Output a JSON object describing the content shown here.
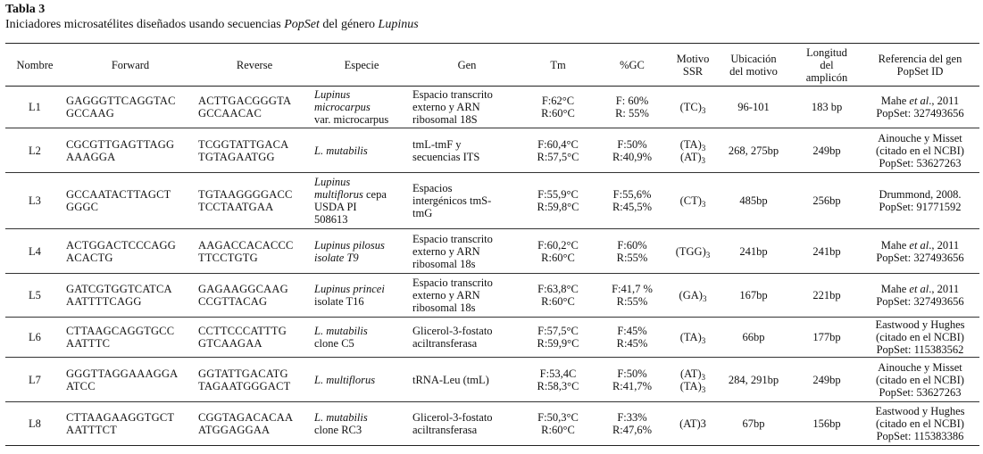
{
  "caption": {
    "label": "Tabla 3",
    "title_pre": "Iniciadores microsatélites diseñados usando secuencias ",
    "title_em1": "PopSet",
    "title_mid": " del género ",
    "title_em2": "Lupinus"
  },
  "headers": {
    "nombre": "Nombre",
    "forward": "Forward",
    "reverse": "Reverse",
    "especie": "Especie",
    "gen": "Gen",
    "tm": "Tm",
    "gc": "%GC",
    "motivo": [
      "Motivo",
      "SSR"
    ],
    "ubicacion": [
      "Ubicación",
      "del motivo"
    ],
    "longitud": [
      "Longitud",
      "del",
      "amplicón"
    ],
    "referencia": [
      "Referencia del gen",
      "PopSet ID"
    ]
  },
  "rows": [
    {
      "nombre": "L1",
      "forward": [
        "GAGGGTTCAGGTAC",
        "GCCAAG"
      ],
      "reverse": [
        "ACTTGACGGGTA",
        "GCCAACAC"
      ],
      "especie": [
        {
          "t": "Lupinus",
          "i": true
        },
        {
          "t": "microcarpus",
          "i": true
        },
        {
          "t": "var. microcarpus",
          "i": false
        }
      ],
      "gen": [
        "Espacio transcrito",
        "externo y ARN",
        "ribosomal 18S"
      ],
      "tm": [
        "F:62°C",
        "R:60°C"
      ],
      "gc": [
        "F: 60%",
        "R: 55%"
      ],
      "motivo": [
        {
          "m": "(TC)",
          "s": "3"
        }
      ],
      "ubicacion": "96-101",
      "longitud": "183 bp",
      "ref": [
        {
          "a": "Mahe ",
          "i": "et al",
          "b": "., 2011"
        },
        {
          "a": "PopSet: 327493656"
        }
      ]
    },
    {
      "nombre": "L2",
      "forward": [
        "CGCGTTGAGTTAGG",
        "AAAGGA"
      ],
      "reverse": [
        "TCGGTATTGACA",
        "TGTAGAATGG"
      ],
      "especie": [
        {
          "t": "L. mutabilis",
          "i": true
        }
      ],
      "gen": [
        "tmL-tmF y",
        "secuencias ITS"
      ],
      "tm": [
        "F:60,4°C",
        "R:57,5°C"
      ],
      "gc": [
        "F:50%",
        "R:40,9%"
      ],
      "motivo": [
        {
          "m": "(TA)",
          "s": "3"
        },
        {
          "m": "(AT)",
          "s": "3"
        }
      ],
      "ubicacion": "268, 275bp",
      "longitud": "249bp",
      "ref": [
        {
          "a": "Ainouche y Misset"
        },
        {
          "a": "(citado en el NCBI)"
        },
        {
          "a": "PopSet: 53627263"
        }
      ]
    },
    {
      "nombre": "L3",
      "forward": [
        "GCCAATACTTAGCT",
        "GGGC"
      ],
      "reverse": [
        "TGTAAGGGGACC",
        "TCCTAATGAA"
      ],
      "especie": [
        {
          "t": "Lupinus",
          "i": true
        },
        {
          "t": "multiflorus",
          "i": true,
          "suffix": " cepa"
        },
        {
          "t": "USDA PI",
          "i": false
        },
        {
          "t": "508613",
          "i": false
        }
      ],
      "gen": [
        "Espacios",
        "intergénicos tmS-",
        "tmG"
      ],
      "tm": [
        "F:55,9°C",
        "R:59,8°C"
      ],
      "gc": [
        "F:55,6%",
        "R:45,5%"
      ],
      "motivo": [
        {
          "m": "(CT)",
          "s": "3"
        }
      ],
      "ubicacion": "485bp",
      "longitud": "256bp",
      "ref": [
        {
          "a": "Drummond, 2008."
        },
        {
          "a": "PopSet: 91771592"
        }
      ]
    },
    {
      "nombre": "L4",
      "forward": [
        "ACTGGACTCCCAGG",
        "ACACTG"
      ],
      "reverse": [
        "AAGACCACACCC",
        "TTCCTGTG"
      ],
      "especie": [
        {
          "t": "Lupinus pilosus",
          "i": true
        },
        {
          "t": "isolate T9",
          "i": true
        }
      ],
      "gen": [
        "Espacio transcrito",
        "externo y ARN",
        "ribosomal 18s"
      ],
      "tm": [
        "F:60,2°C",
        "R:60°C"
      ],
      "gc": [
        "F:60%",
        "R:55%"
      ],
      "motivo": [
        {
          "m": "(TGG)",
          "s": "3"
        }
      ],
      "ubicacion": "241bp",
      "longitud": "241bp",
      "ref": [
        {
          "a": "Mahe ",
          "i": "et al",
          "b": "., 2011"
        },
        {
          "a": "PopSet: 327493656"
        }
      ]
    },
    {
      "nombre": "L5",
      "forward": [
        "GATCGTGGTCATCA",
        "AATTTTCAGG"
      ],
      "reverse": [
        "GAGAAGGCAAG",
        "CCGTTACAG"
      ],
      "especie": [
        {
          "t": "Lupinus princei",
          "i": true
        },
        {
          "t": "isolate T16",
          "i": false
        }
      ],
      "gen": [
        "Espacio transcrito",
        "externo y ARN",
        "ribosomal 18s"
      ],
      "tm": [
        "F:63,8°C",
        "R:60°C"
      ],
      "gc": [
        "F:41,7 %",
        "R:55%"
      ],
      "motivo": [
        {
          "m": "(GA)",
          "s": "3"
        }
      ],
      "ubicacion": "167bp",
      "longitud": "221bp",
      "ref": [
        {
          "a": "Mahe ",
          "i": "et al",
          "b": "., 2011"
        },
        {
          "a": "PopSet: 327493656"
        }
      ]
    },
    {
      "nombre": "L6",
      "forward": [
        "CTTAAGCAGGTGCC",
        "AATTTC"
      ],
      "reverse": [
        "CCTTCCCATTTG",
        "GTCAAGAA"
      ],
      "especie": [
        {
          "t": "L. mutabilis",
          "i": true
        },
        {
          "t": "clone C5",
          "i": false
        }
      ],
      "gen": [
        "Glicerol-3-fostato",
        "aciltransferasa"
      ],
      "tm": [
        "F:57,5°C",
        "R:59,9°C"
      ],
      "gc": [
        "F:45%",
        "R:45%"
      ],
      "motivo": [
        {
          "m": "(TA)",
          "s": "3"
        }
      ],
      "ubicacion": "66bp",
      "longitud": "177bp",
      "ref": [
        {
          "a": "Eastwood y Hughes"
        },
        {
          "a": "(citado en el NCBI)"
        },
        {
          "a": "PopSet: 115383562"
        }
      ]
    },
    {
      "nombre": "L7",
      "forward": [
        "GGGTTAGGAAAGGA",
        "ATCC"
      ],
      "reverse": [
        "GGTATTGACATG",
        "TAGAATGGGACT"
      ],
      "especie": [
        {
          "t": "L. multiflorus",
          "i": true
        }
      ],
      "gen": [
        "tRNA-Leu (tmL)"
      ],
      "tm": [
        "F:53,4C",
        "R:58,3°C"
      ],
      "gc": [
        "F:50%",
        "R:41,7%"
      ],
      "motivo": [
        {
          "m": "(AT)",
          "s": "3"
        },
        {
          "m": "(TA)",
          "s": "3"
        }
      ],
      "ubicacion": "284, 291bp",
      "longitud": "249bp",
      "ref": [
        {
          "a": "Ainouche y Misset"
        },
        {
          "a": "(citado en el NCBI)"
        },
        {
          "a": "PopSet: 53627263"
        }
      ]
    },
    {
      "nombre": "L8",
      "forward": [
        "CTTAAGAAGGTGCT",
        "AATTTCT"
      ],
      "reverse": [
        "CGGTAGACACAA",
        "ATGGAGGAA"
      ],
      "especie": [
        {
          "t": "L. mutabilis",
          "i": true
        },
        {
          "t": "clone RC3",
          "i": false
        }
      ],
      "gen": [
        "Glicerol-3-fostato",
        "aciltransferasa"
      ],
      "tm": [
        "F:50,3°C",
        "R:60°C"
      ],
      "gc": [
        "F:33%",
        "R:47,6%"
      ],
      "motivo": [
        {
          "m": "(AT)3",
          "s": ""
        }
      ],
      "ubicacion": "67bp",
      "longitud": "156bp",
      "ref": [
        {
          "a": "Eastwood y Hughes"
        },
        {
          "a": "(citado en el NCBI)"
        },
        {
          "a": "PopSet: 115383386"
        }
      ]
    }
  ]
}
